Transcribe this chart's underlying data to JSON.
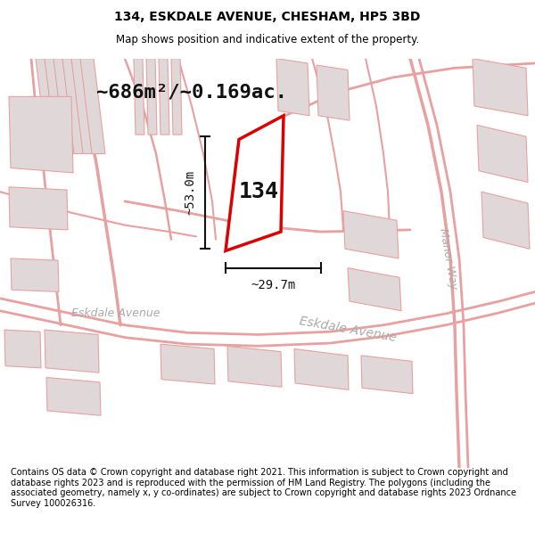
{
  "title_line1": "134, ESKDALE AVENUE, CHESHAM, HP5 3BD",
  "title_line2": "Map shows position and indicative extent of the property.",
  "footer_text": "Contains OS data © Crown copyright and database right 2021. This information is subject to Crown copyright and database rights 2023 and is reproduced with the permission of HM Land Registry. The polygons (including the associated geometry, namely x, y co-ordinates) are subject to Crown copyright and database rights 2023 Ordnance Survey 100026316.",
  "background_color": "#ffffff",
  "map_bg_color": "#ffffff",
  "street_color": "#e8a0a0",
  "building_fill": "#e0d8d8",
  "building_outline": "#e8a0a0",
  "highlight_plot_color": "#dd0000",
  "highlight_plot_fill": "#ffffff",
  "dimension_color": "#111111",
  "area_text": "~686m²/~0.169ac.",
  "label_134": "134",
  "dim_height": "~53.0m",
  "dim_width": "~29.7m",
  "street_label_diagonal": "Eskdale Avenue",
  "street_label2": "Manor Way",
  "street_label_left": "Eskdale Avenue"
}
